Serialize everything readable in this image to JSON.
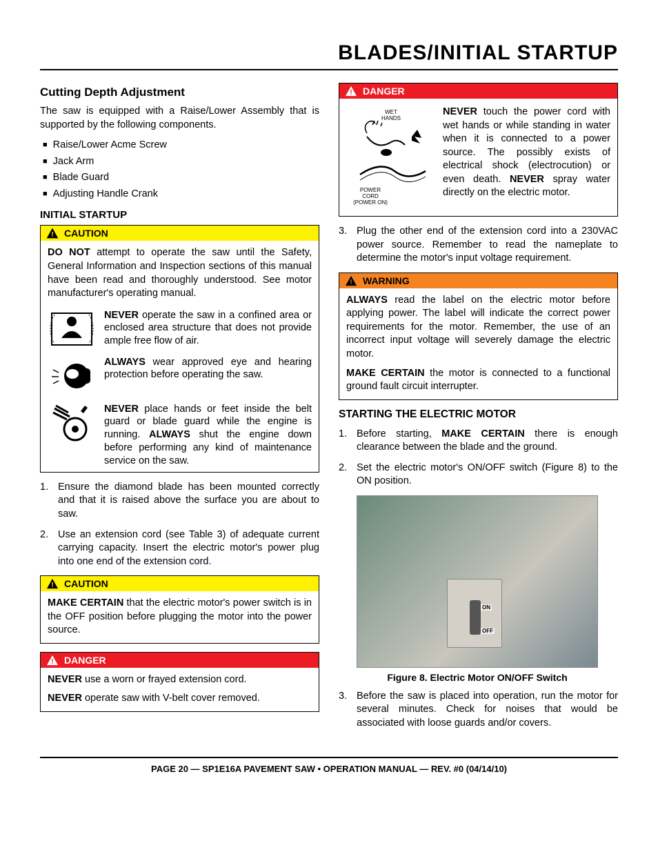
{
  "title": "BLADES/INITIAL STARTUP",
  "left": {
    "h1": "Cutting Depth Adjustment",
    "intro": "The saw is equipped with a Raise/Lower Assembly that is supported by the following components.",
    "bullets": [
      "Raise/Lower Acme Screw",
      "Jack Arm",
      "Blade Guard",
      "Adjusting Handle Crank"
    ],
    "h2": "INITIAL STARTUP",
    "caution1": {
      "label": "CAUTION",
      "p1": "<b>DO NOT</b> attempt to operate the saw until the Safety, General Information and Inspection sections of this manual have been read and thoroughly understood. See motor manufacturer's operating manual.",
      "row1": "<b>NEVER</b> operate the saw in a confined area or enclosed area structure that does not provide ample free flow of air.",
      "row2": "<b>ALWAYS</b> wear approved eye and hearing protection before operating the saw.",
      "row3": "<b>NEVER</b> place hands or feet inside the belt guard or blade guard while the engine is running. <b>ALWAYS</b> shut the engine down before performing any kind of maintenance service on the saw."
    },
    "steps": [
      "Ensure the diamond blade has been mounted correctly and that it is raised above the surface you are about to saw.",
      "Use an extension cord (see Table 3) of adequate current carrying capacity. Insert the electric motor's power plug into one end of the extension cord."
    ],
    "caution2": {
      "label": "CAUTION",
      "p1": "<b>MAKE CERTAIN</b> that the electric motor's power switch is in the OFF position before plugging the motor into the power source."
    },
    "danger1": {
      "label": "DANGER",
      "p1": "<b>NEVER</b> use a worn or frayed extension cord.",
      "p2": "<b>NEVER</b> operate saw with V-belt cover removed."
    }
  },
  "right": {
    "danger": {
      "label": "DANGER",
      "pic_top": "WET\nHANDS",
      "pic_bottom": "POWER\nCORD\n(POWER ON)",
      "text": "<b>NEVER</b> touch the power cord with wet hands or while standing in water when it is connected to a power source. The possibly exists of electrical shock (electrocution) or even death. <b>NEVER</b> spray water directly on the electric motor."
    },
    "step3": "Plug the other end of the extension cord into a 230VAC power source. Remember to read the nameplate to determine the motor's input voltage requirement.",
    "warning": {
      "label": "WARNING",
      "p1": "<b>ALWAYS</b> read the label on the electric motor before applying power. The label will indicate the correct power requirements for the motor. Remember, the use of an incorrect input voltage will severely damage the electric motor.",
      "p2": "<b>MAKE CERTAIN</b> the motor is connected to a functional ground fault circuit interrupter."
    },
    "h3": "STARTING THE ELECTRIC MOTOR",
    "motor_steps": [
      "Before starting, <b>MAKE CERTAIN</b> there is enough clearance between the blade and the ground.",
      "Set the electric motor's ON/OFF switch (Figure 8) to the ON position."
    ],
    "figure": {
      "on": "ON",
      "off": "OFF",
      "caption": "Figure 8. Electric Motor ON/OFF Switch"
    },
    "motor_step3": "Before the saw is placed into operation, run the motor for several minutes. Check for noises that would be associated with loose guards and/or covers."
  },
  "footer": "PAGE 20 — SP1E16A PAVEMENT SAW • OPERATION MANUAL — REV. #0 (04/14/10)",
  "colors": {
    "caution_bg": "#fff200",
    "warning_bg": "#f58220",
    "danger_bg": "#ed1c24",
    "text": "#000000",
    "page_bg": "#ffffff"
  }
}
